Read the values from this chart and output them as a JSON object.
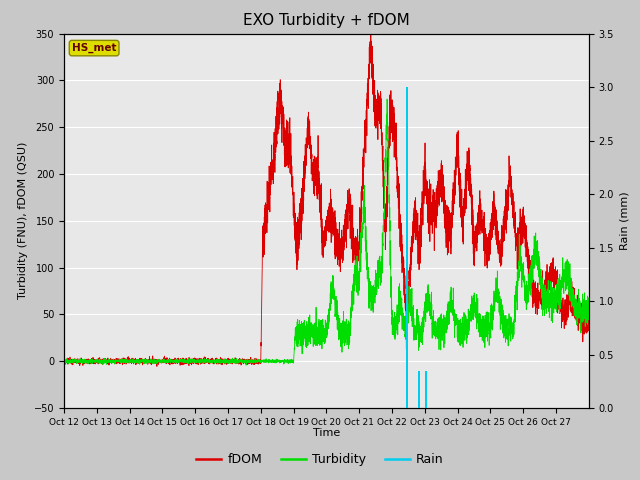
{
  "title": "EXO Turbidity + fDOM",
  "xlabel": "Time",
  "ylabel_left": "Turbidity (FNU), fDOM (QSU)",
  "ylabel_right": "Rain (mm)",
  "ylim_left": [
    -50,
    350
  ],
  "ylim_right": [
    0.0,
    3.5
  ],
  "yticks_left": [
    -50,
    0,
    50,
    100,
    150,
    200,
    250,
    300,
    350
  ],
  "yticks_right": [
    0.0,
    0.5,
    1.0,
    1.5,
    2.0,
    2.5,
    3.0,
    3.5
  ],
  "xtick_labels": [
    "Oct 12",
    "Oct 13",
    "Oct 14",
    "Oct 15",
    "Oct 16",
    "Oct 17",
    "Oct 18",
    "Oct 19",
    "Oct 20",
    "Oct 21",
    "Oct 22",
    "Oct 23",
    "Oct 24",
    "Oct 25",
    "Oct 26",
    "Oct 27"
  ],
  "xlim": [
    0,
    16
  ],
  "fig_bg_color": "#c8c8c8",
  "plot_bg_color": "#e8e8e8",
  "fdom_color": "#dd0000",
  "turbidity_color": "#00dd00",
  "rain_color": "#00ccee",
  "legend_box_text": "HS_met",
  "legend_box_facecolor": "#dddd00",
  "legend_box_edgecolor": "#888800",
  "legend_box_textcolor": "#660000",
  "n_points": 5000,
  "seed": 99,
  "rain_tall_t": 10.45,
  "rain_tall_mm": 3.0,
  "rain_small_t1": 10.82,
  "rain_small_t2": 11.05,
  "rain_small_mm": 0.35,
  "rain_bar_width": 0.06
}
